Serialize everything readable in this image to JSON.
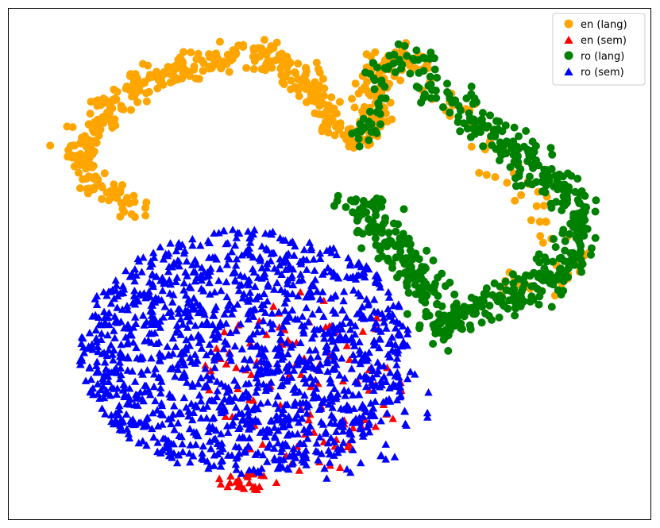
{
  "chart_data": {
    "type": "scatter",
    "title": "",
    "xlabel": "",
    "ylabel": "",
    "xlim": [
      0,
      100
    ],
    "ylim": [
      0,
      100
    ],
    "grid": false,
    "axes_ticks": false,
    "legend_placement": "top-right",
    "colors": {
      "en_lang": "#ffa500",
      "en_sem": "#ff0000",
      "ro_lang": "#008000",
      "ro_sem": "#0000ff"
    },
    "series": [
      {
        "name": "en (lang)",
        "marker": "circle",
        "color": "#ffa500",
        "clusters": [
          {
            "shape": "path",
            "count": 520,
            "spread": 2.6,
            "path": [
              [
                21,
                60
              ],
              [
                12,
                67
              ],
              [
                11,
                73
              ],
              [
                14,
                78
              ],
              [
                17,
                82
              ],
              [
                21,
                86
              ],
              [
                25,
                86
              ],
              [
                29,
                89
              ],
              [
                33,
                90
              ],
              [
                37,
                92
              ],
              [
                40,
                90
              ],
              [
                43,
                89
              ],
              [
                46,
                86
              ],
              [
                48,
                83
              ],
              [
                49,
                78
              ],
              [
                52,
                75
              ],
              [
                55,
                74
              ],
              [
                57,
                77
              ],
              [
                57,
                81
              ],
              [
                57,
                85
              ],
              [
                58,
                88
              ],
              [
                61,
                90
              ],
              [
                64,
                90
              ]
            ]
          },
          {
            "shape": "path",
            "count": 60,
            "spread": 3.2,
            "path": [
              [
                66,
                85
              ],
              [
                71,
                79
              ],
              [
                76,
                72
              ],
              [
                80,
                65
              ],
              [
                84,
                58
              ],
              [
                87,
                53
              ],
              [
                88,
                50
              ],
              [
                84,
                47
              ],
              [
                79,
                46
              ],
              [
                74,
                46
              ]
            ]
          }
        ]
      },
      {
        "name": "en (sem)",
        "marker": "triangle",
        "color": "#ff0000",
        "clusters": [
          {
            "shape": "blob",
            "count": 95,
            "cx": 46,
            "cy": 27,
            "rx": 17,
            "ry": 18
          },
          {
            "shape": "blob",
            "count": 28,
            "cx": 38,
            "cy": 7.5,
            "rx": 6,
            "ry": 1.6
          }
        ]
      },
      {
        "name": "ro (lang)",
        "marker": "circle",
        "color": "#008000",
        "clusters": [
          {
            "shape": "path",
            "count": 90,
            "spread": 2.6,
            "path": [
              [
                54,
                74
              ],
              [
                57,
                78
              ],
              [
                57,
                83
              ],
              [
                58,
                88
              ],
              [
                61,
                90
              ],
              [
                64,
                90
              ],
              [
                66,
                86
              ],
              [
                68,
                83
              ],
              [
                71,
                80
              ]
            ]
          },
          {
            "shape": "path",
            "count": 540,
            "spread": 3.2,
            "path": [
              [
                71,
                80
              ],
              [
                76,
                75
              ],
              [
                80,
                71
              ],
              [
                83,
                67
              ],
              [
                87,
                63
              ],
              [
                89,
                59
              ],
              [
                89,
                55
              ],
              [
                87,
                51
              ],
              [
                84,
                47
              ],
              [
                80,
                44
              ],
              [
                76,
                44
              ],
              [
                72,
                41
              ],
              [
                68,
                37
              ],
              [
                66,
                43
              ],
              [
                63,
                48
              ],
              [
                60,
                53
              ],
              [
                57,
                58
              ],
              [
                54,
                62
              ]
            ]
          }
        ]
      },
      {
        "name": "ro (sem)",
        "marker": "triangle",
        "color": "#0000ff",
        "clusters": [
          {
            "shape": "blob",
            "count": 1350,
            "cx": 37,
            "cy": 33,
            "rx": 26,
            "ry": 24
          },
          {
            "shape": "blob",
            "count": 110,
            "cx": 49,
            "cy": 22,
            "rx": 17,
            "ry": 14
          }
        ]
      }
    ]
  }
}
